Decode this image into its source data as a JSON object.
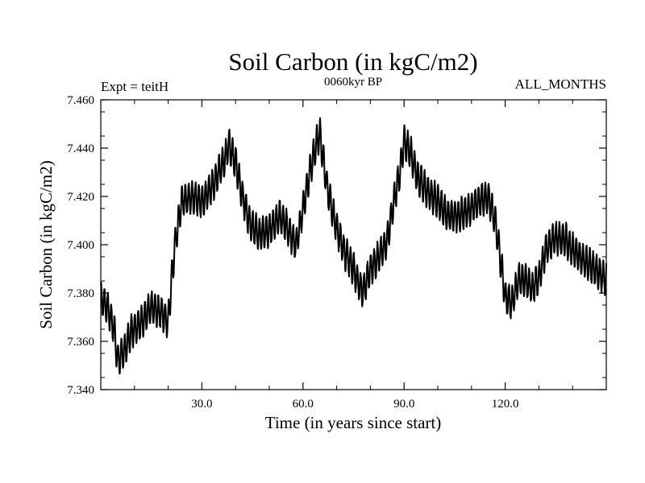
{
  "chart_data": {
    "type": "line",
    "title": "Soil Carbon (in kgC/m2)",
    "subtitle": "0060kyr BP",
    "left_label": "Expt = teitH",
    "right_label": "ALL_MONTHS",
    "xlabel": "Time (in years since start)",
    "ylabel": "Soil Carbon (in kgC/m2)",
    "xlim": [
      0,
      150
    ],
    "ylim": [
      7.34,
      7.46
    ],
    "xticks": [
      30,
      60,
      90,
      120
    ],
    "xtick_labels": [
      "30.0",
      "60.0",
      "90.0",
      "120.0"
    ],
    "yticks": [
      7.34,
      7.36,
      7.38,
      7.4,
      7.42,
      7.44,
      7.46
    ],
    "ytick_labels": [
      "7.340",
      "7.360",
      "7.380",
      "7.400",
      "7.420",
      "7.440",
      "7.460"
    ],
    "seasonal_amplitude": 0.0065,
    "series": [
      {
        "name": "Soil Carbon",
        "color": "#000000",
        "x": [
          0,
          2,
          4,
          5,
          7,
          9,
          12,
          15,
          18,
          20,
          21,
          22,
          24,
          27,
          30,
          33,
          35,
          37,
          38,
          40,
          42,
          44,
          47,
          50,
          53,
          55,
          57,
          58,
          60,
          62,
          64,
          65,
          67,
          69,
          72,
          75,
          77,
          78,
          80,
          83,
          85,
          87,
          89,
          90,
          92,
          94,
          97,
          100,
          103,
          106,
          109,
          112,
          115,
          117,
          119,
          120,
          122,
          124,
          126,
          128,
          130,
          132,
          135,
          138,
          140,
          142,
          145,
          148,
          150
        ],
        "values": [
          7.378,
          7.374,
          7.365,
          7.352,
          7.356,
          7.364,
          7.368,
          7.374,
          7.372,
          7.368,
          7.385,
          7.4,
          7.418,
          7.42,
          7.418,
          7.424,
          7.43,
          7.436,
          7.442,
          7.434,
          7.42,
          7.41,
          7.404,
          7.406,
          7.412,
          7.408,
          7.402,
          7.4,
          7.415,
          7.43,
          7.442,
          7.446,
          7.425,
          7.412,
          7.398,
          7.39,
          7.382,
          7.381,
          7.39,
          7.396,
          7.402,
          7.418,
          7.432,
          7.443,
          7.438,
          7.428,
          7.422,
          7.418,
          7.412,
          7.412,
          7.414,
          7.418,
          7.42,
          7.41,
          7.39,
          7.378,
          7.376,
          7.386,
          7.385,
          7.382,
          7.386,
          7.398,
          7.403,
          7.402,
          7.398,
          7.395,
          7.392,
          7.388,
          7.386
        ]
      }
    ]
  }
}
